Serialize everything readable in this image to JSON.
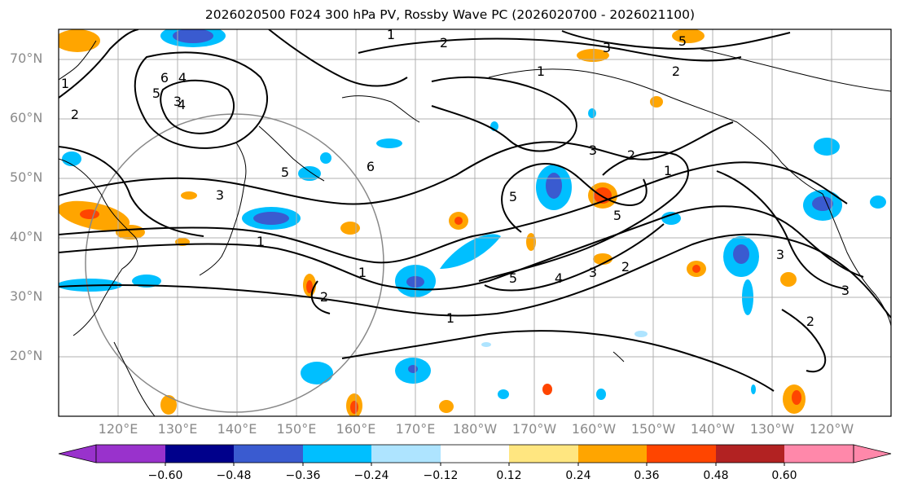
{
  "title": "2026020500 F024 300 hPa PV, Rossby Wave PC (2026020700 - 2026021100)",
  "lat_labels": [
    "70°N",
    "60°N",
    "50°N",
    "40°N",
    "30°N",
    "20°N"
  ],
  "lon_labels": [
    "120°E",
    "130°E",
    "140°E",
    "150°E",
    "160°E",
    "170°E",
    "180°W",
    "170°W",
    "160°W",
    "150°W",
    "140°W",
    "130°W",
    "120°W"
  ],
  "colorbar": {
    "ticks": [
      "−0.60",
      "−0.48",
      "−0.36",
      "−0.24",
      "−0.12",
      "0.12",
      "0.24",
      "0.36",
      "0.48",
      "0.60"
    ],
    "colors": [
      "#9932cc",
      "#00008b",
      "#3a5bd0",
      "#00bfff",
      "#aee4ff",
      "#ffffff",
      "#ffe680",
      "#ffa500",
      "#ff4500",
      "#b22222",
      "#ff88aa"
    ]
  },
  "contour_labels": [
    "6",
    "5",
    "4",
    "3",
    "2",
    "1",
    "6",
    "5",
    "4",
    "3",
    "2",
    "1",
    "5",
    "4",
    "3",
    "2",
    "1",
    "1",
    "5",
    "2",
    "3",
    "1",
    "5",
    "2",
    "1",
    "3",
    "2",
    "3",
    "5",
    "3",
    "2",
    "1"
  ]
}
